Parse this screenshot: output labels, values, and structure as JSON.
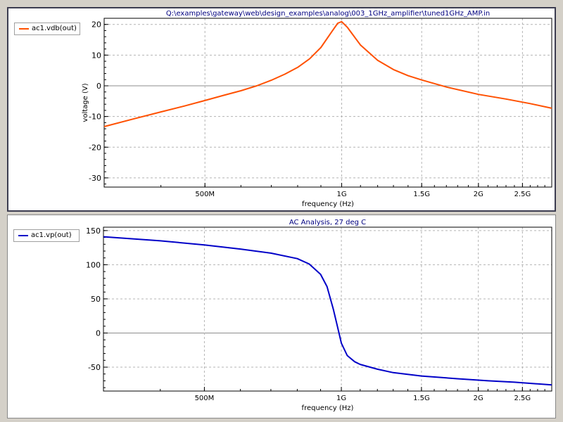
{
  "chart_data": [
    {
      "type": "line",
      "title": "Q:\\examples\\gateway\\web\\design_examples\\analog\\003_1GHz_amplifier\\tuned1GHz_AMP.in",
      "xlabel": "frequency (Hz)",
      "ylabel": "voltage (V)",
      "x_scale": "log",
      "xlim": [
        300000000,
        2900000000
      ],
      "ylim": [
        -33,
        22
      ],
      "x_ticks": [
        {
          "value": 500000000,
          "label": "500M"
        },
        {
          "value": 1000000000,
          "label": "1G"
        },
        {
          "value": 1500000000,
          "label": "1.5G"
        },
        {
          "value": 2000000000,
          "label": "2G"
        },
        {
          "value": 2500000000,
          "label": "2.5G"
        }
      ],
      "y_ticks": [
        20,
        10,
        0,
        -10,
        -20,
        -30
      ],
      "grid": true,
      "legend": "top-left",
      "series": [
        {
          "name": "ac1.vdb(out)",
          "color": "#ff5000",
          "x": [
            300000000,
            350000000,
            400000000,
            450000000,
            500000000,
            550000000,
            600000000,
            650000000,
            700000000,
            750000000,
            800000000,
            850000000,
            900000000,
            950000000,
            980000000,
            1000000000,
            1030000000,
            1100000000,
            1200000000,
            1300000000,
            1400000000,
            1500000000,
            1700000000,
            2000000000,
            2300000000,
            2600000000,
            2900000000
          ],
          "y": [
            -13.3,
            -10.7,
            -8.5,
            -6.6,
            -4.8,
            -3.1,
            -1.6,
            0.0,
            1.8,
            3.8,
            6.0,
            8.8,
            12.5,
            17.5,
            20.4,
            20.9,
            19.0,
            13.3,
            8.3,
            5.3,
            3.3,
            1.9,
            -0.4,
            -2.8,
            -4.3,
            -5.8,
            -7.3
          ]
        }
      ]
    },
    {
      "type": "line",
      "title": "AC Analysis, 27 deg C",
      "xlabel": "frequency (Hz)",
      "ylabel": "",
      "x_scale": "log",
      "xlim": [
        300000000,
        2900000000
      ],
      "ylim": [
        -85,
        155
      ],
      "x_ticks": [
        {
          "value": 500000000,
          "label": "500M"
        },
        {
          "value": 1000000000,
          "label": "1G"
        },
        {
          "value": 1500000000,
          "label": "1.5G"
        },
        {
          "value": 2000000000,
          "label": "2G"
        },
        {
          "value": 2500000000,
          "label": "2.5G"
        }
      ],
      "y_ticks": [
        150,
        100,
        50,
        0,
        -50
      ],
      "grid": true,
      "legend": "top-left",
      "series": [
        {
          "name": "ac1.vp(out)",
          "color": "#0000c8",
          "x": [
            300000000,
            400000000,
            500000000,
            600000000,
            700000000,
            800000000,
            850000000,
            900000000,
            930000000,
            960000000,
            980000000,
            1000000000,
            1030000000,
            1070000000,
            1100000000,
            1200000000,
            1300000000,
            1500000000,
            1800000000,
            2100000000,
            2400000000,
            2900000000
          ],
          "y": [
            141,
            135,
            129,
            123,
            117,
            109,
            101,
            86,
            68,
            35,
            10,
            -15,
            -33,
            -42,
            -46,
            -53,
            -58,
            -63,
            -67,
            -70,
            -72,
            -76
          ]
        }
      ]
    }
  ]
}
